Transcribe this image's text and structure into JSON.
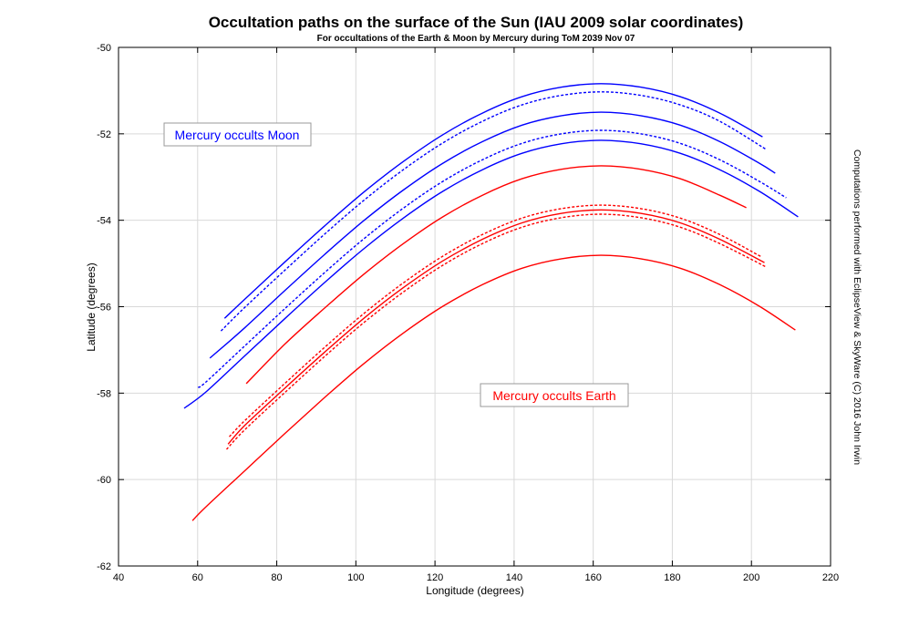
{
  "chart_data": {
    "type": "line",
    "title": "Occultation paths on the surface of the Sun (IAU 2009 solar coordinates)",
    "subtitle": "For occultations of the Earth & Moon by Mercury during ToM 2039 Nov 07",
    "xlabel": "Longitude (degrees)",
    "ylabel": "Latitude (degrees)",
    "side_note": "Computations performed with EclipseView & SkyWare (C) 2016 John Irwin",
    "xlim": [
      40,
      220
    ],
    "ylim": [
      -62,
      -50
    ],
    "xticks": [
      "40",
      "60",
      "80",
      "100",
      "120",
      "140",
      "160",
      "180",
      "200",
      "220"
    ],
    "yticks": [
      "-50",
      "-52",
      "-54",
      "-56",
      "-58",
      "-60",
      "-62"
    ],
    "grid": true,
    "annotations": [
      {
        "text": "Mercury occults Moon",
        "color": "#0000ff"
      },
      {
        "text": "Mercury occults Earth",
        "color": "#ff0000"
      }
    ],
    "colors": {
      "moon": "#0000ff",
      "earth": "#ff0000",
      "grid": "#d9d9d9"
    },
    "series": [
      {
        "name": "moon-path-1",
        "group": "moon",
        "style": "solid",
        "points": [
          [
            66.8,
            -56.27
          ],
          [
            72,
            -55.82
          ],
          [
            82,
            -54.97
          ],
          [
            92,
            -54.14
          ],
          [
            102,
            -53.35
          ],
          [
            112,
            -52.64
          ],
          [
            122,
            -52.02
          ],
          [
            132,
            -51.52
          ],
          [
            142,
            -51.14
          ],
          [
            152,
            -50.92
          ],
          [
            162,
            -50.84
          ],
          [
            172,
            -50.92
          ],
          [
            182,
            -51.14
          ],
          [
            192,
            -51.52
          ],
          [
            202.8,
            -52.07
          ]
        ]
      },
      {
        "name": "moon-path-2",
        "group": "moon",
        "style": "dashed",
        "points": [
          [
            65.9,
            -56.56
          ],
          [
            72,
            -56.01
          ],
          [
            82,
            -55.16
          ],
          [
            92,
            -54.33
          ],
          [
            102,
            -53.54
          ],
          [
            112,
            -52.83
          ],
          [
            122,
            -52.21
          ],
          [
            132,
            -51.71
          ],
          [
            142,
            -51.33
          ],
          [
            152,
            -51.11
          ],
          [
            162,
            -51.03
          ],
          [
            172,
            -51.11
          ],
          [
            182,
            -51.33
          ],
          [
            192,
            -51.71
          ],
          [
            203.7,
            -52.36
          ]
        ]
      },
      {
        "name": "moon-path-3",
        "group": "moon",
        "style": "solid",
        "points": [
          [
            63.1,
            -57.19
          ],
          [
            72,
            -56.48
          ],
          [
            82,
            -55.63
          ],
          [
            92,
            -54.8
          ],
          [
            102,
            -54.01
          ],
          [
            112,
            -53.3
          ],
          [
            122,
            -52.68
          ],
          [
            132,
            -52.18
          ],
          [
            142,
            -51.8
          ],
          [
            152,
            -51.58
          ],
          [
            162,
            -51.5
          ],
          [
            172,
            -51.58
          ],
          [
            182,
            -51.8
          ],
          [
            192,
            -52.18
          ],
          [
            202,
            -52.68
          ],
          [
            206,
            -52.91
          ]
        ]
      },
      {
        "name": "moon-path-4",
        "group": "moon",
        "style": "dashed",
        "points": [
          [
            60.1,
            -57.87
          ],
          [
            62,
            -57.75
          ],
          [
            72,
            -56.9
          ],
          [
            82,
            -56.05
          ],
          [
            92,
            -55.22
          ],
          [
            102,
            -54.43
          ],
          [
            112,
            -53.72
          ],
          [
            122,
            -53.1
          ],
          [
            132,
            -52.6
          ],
          [
            142,
            -52.22
          ],
          [
            152,
            -52.0
          ],
          [
            162,
            -51.92
          ],
          [
            172,
            -52.0
          ],
          [
            182,
            -52.22
          ],
          [
            192,
            -52.6
          ],
          [
            202,
            -53.1
          ],
          [
            208.8,
            -53.48
          ]
        ]
      },
      {
        "name": "moon-path-5",
        "group": "moon",
        "style": "solid",
        "points": [
          [
            56.6,
            -58.35
          ],
          [
            62,
            -57.98
          ],
          [
            72,
            -57.13
          ],
          [
            82,
            -56.28
          ],
          [
            92,
            -55.45
          ],
          [
            102,
            -54.66
          ],
          [
            112,
            -53.95
          ],
          [
            122,
            -53.33
          ],
          [
            132,
            -52.83
          ],
          [
            142,
            -52.45
          ],
          [
            152,
            -52.23
          ],
          [
            162,
            -52.15
          ],
          [
            172,
            -52.23
          ],
          [
            182,
            -52.45
          ],
          [
            192,
            -52.83
          ],
          [
            202,
            -53.33
          ],
          [
            211.8,
            -53.92
          ]
        ]
      },
      {
        "name": "earth-path-1",
        "group": "earth",
        "style": "solid",
        "points": [
          [
            72.3,
            -57.78
          ],
          [
            82,
            -56.87
          ],
          [
            92,
            -56.04
          ],
          [
            102,
            -55.25
          ],
          [
            112,
            -54.54
          ],
          [
            122,
            -53.92
          ],
          [
            132,
            -53.42
          ],
          [
            142,
            -53.04
          ],
          [
            152,
            -52.82
          ],
          [
            162,
            -52.74
          ],
          [
            172,
            -52.82
          ],
          [
            182,
            -53.04
          ],
          [
            192,
            -53.42
          ],
          [
            198.7,
            -53.71
          ]
        ]
      },
      {
        "name": "earth-path-2",
        "group": "earth",
        "style": "dashed",
        "points": [
          [
            68,
            -59.01
          ],
          [
            72,
            -58.63
          ],
          [
            82,
            -57.78
          ],
          [
            92,
            -56.95
          ],
          [
            102,
            -56.16
          ],
          [
            112,
            -55.45
          ],
          [
            122,
            -54.83
          ],
          [
            132,
            -54.33
          ],
          [
            142,
            -53.95
          ],
          [
            152,
            -53.73
          ],
          [
            162,
            -53.65
          ],
          [
            172,
            -53.73
          ],
          [
            182,
            -53.95
          ],
          [
            192,
            -54.33
          ],
          [
            202.6,
            -54.85
          ]
        ]
      },
      {
        "name": "earth-path-3",
        "group": "earth",
        "style": "solid",
        "points": [
          [
            67.7,
            -59.18
          ],
          [
            72,
            -58.74
          ],
          [
            82,
            -57.89
          ],
          [
            92,
            -57.06
          ],
          [
            102,
            -56.27
          ],
          [
            112,
            -55.56
          ],
          [
            122,
            -54.94
          ],
          [
            132,
            -54.44
          ],
          [
            142,
            -54.06
          ],
          [
            152,
            -53.84
          ],
          [
            162,
            -53.76
          ],
          [
            172,
            -53.84
          ],
          [
            182,
            -54.06
          ],
          [
            192,
            -54.44
          ],
          [
            203.3,
            -54.98
          ]
        ]
      },
      {
        "name": "earth-path-4",
        "group": "earth",
        "style": "dashed",
        "points": [
          [
            67.3,
            -59.3
          ],
          [
            72,
            -58.84
          ],
          [
            82,
            -57.99
          ],
          [
            92,
            -57.16
          ],
          [
            102,
            -56.37
          ],
          [
            112,
            -55.66
          ],
          [
            122,
            -55.04
          ],
          [
            132,
            -54.54
          ],
          [
            142,
            -54.16
          ],
          [
            152,
            -53.94
          ],
          [
            162,
            -53.86
          ],
          [
            172,
            -53.94
          ],
          [
            182,
            -54.16
          ],
          [
            192,
            -54.54
          ],
          [
            203.7,
            -55.08
          ]
        ]
      },
      {
        "name": "earth-path-5",
        "group": "earth",
        "style": "solid",
        "points": [
          [
            58.7,
            -60.95
          ],
          [
            62,
            -60.64
          ],
          [
            72,
            -59.79
          ],
          [
            82,
            -58.94
          ],
          [
            92,
            -58.11
          ],
          [
            102,
            -57.32
          ],
          [
            112,
            -56.61
          ],
          [
            122,
            -55.99
          ],
          [
            132,
            -55.49
          ],
          [
            142,
            -55.11
          ],
          [
            152,
            -54.89
          ],
          [
            162,
            -54.81
          ],
          [
            172,
            -54.89
          ],
          [
            182,
            -55.11
          ],
          [
            192,
            -55.49
          ],
          [
            202,
            -55.99
          ],
          [
            211.1,
            -56.54
          ]
        ]
      }
    ]
  }
}
